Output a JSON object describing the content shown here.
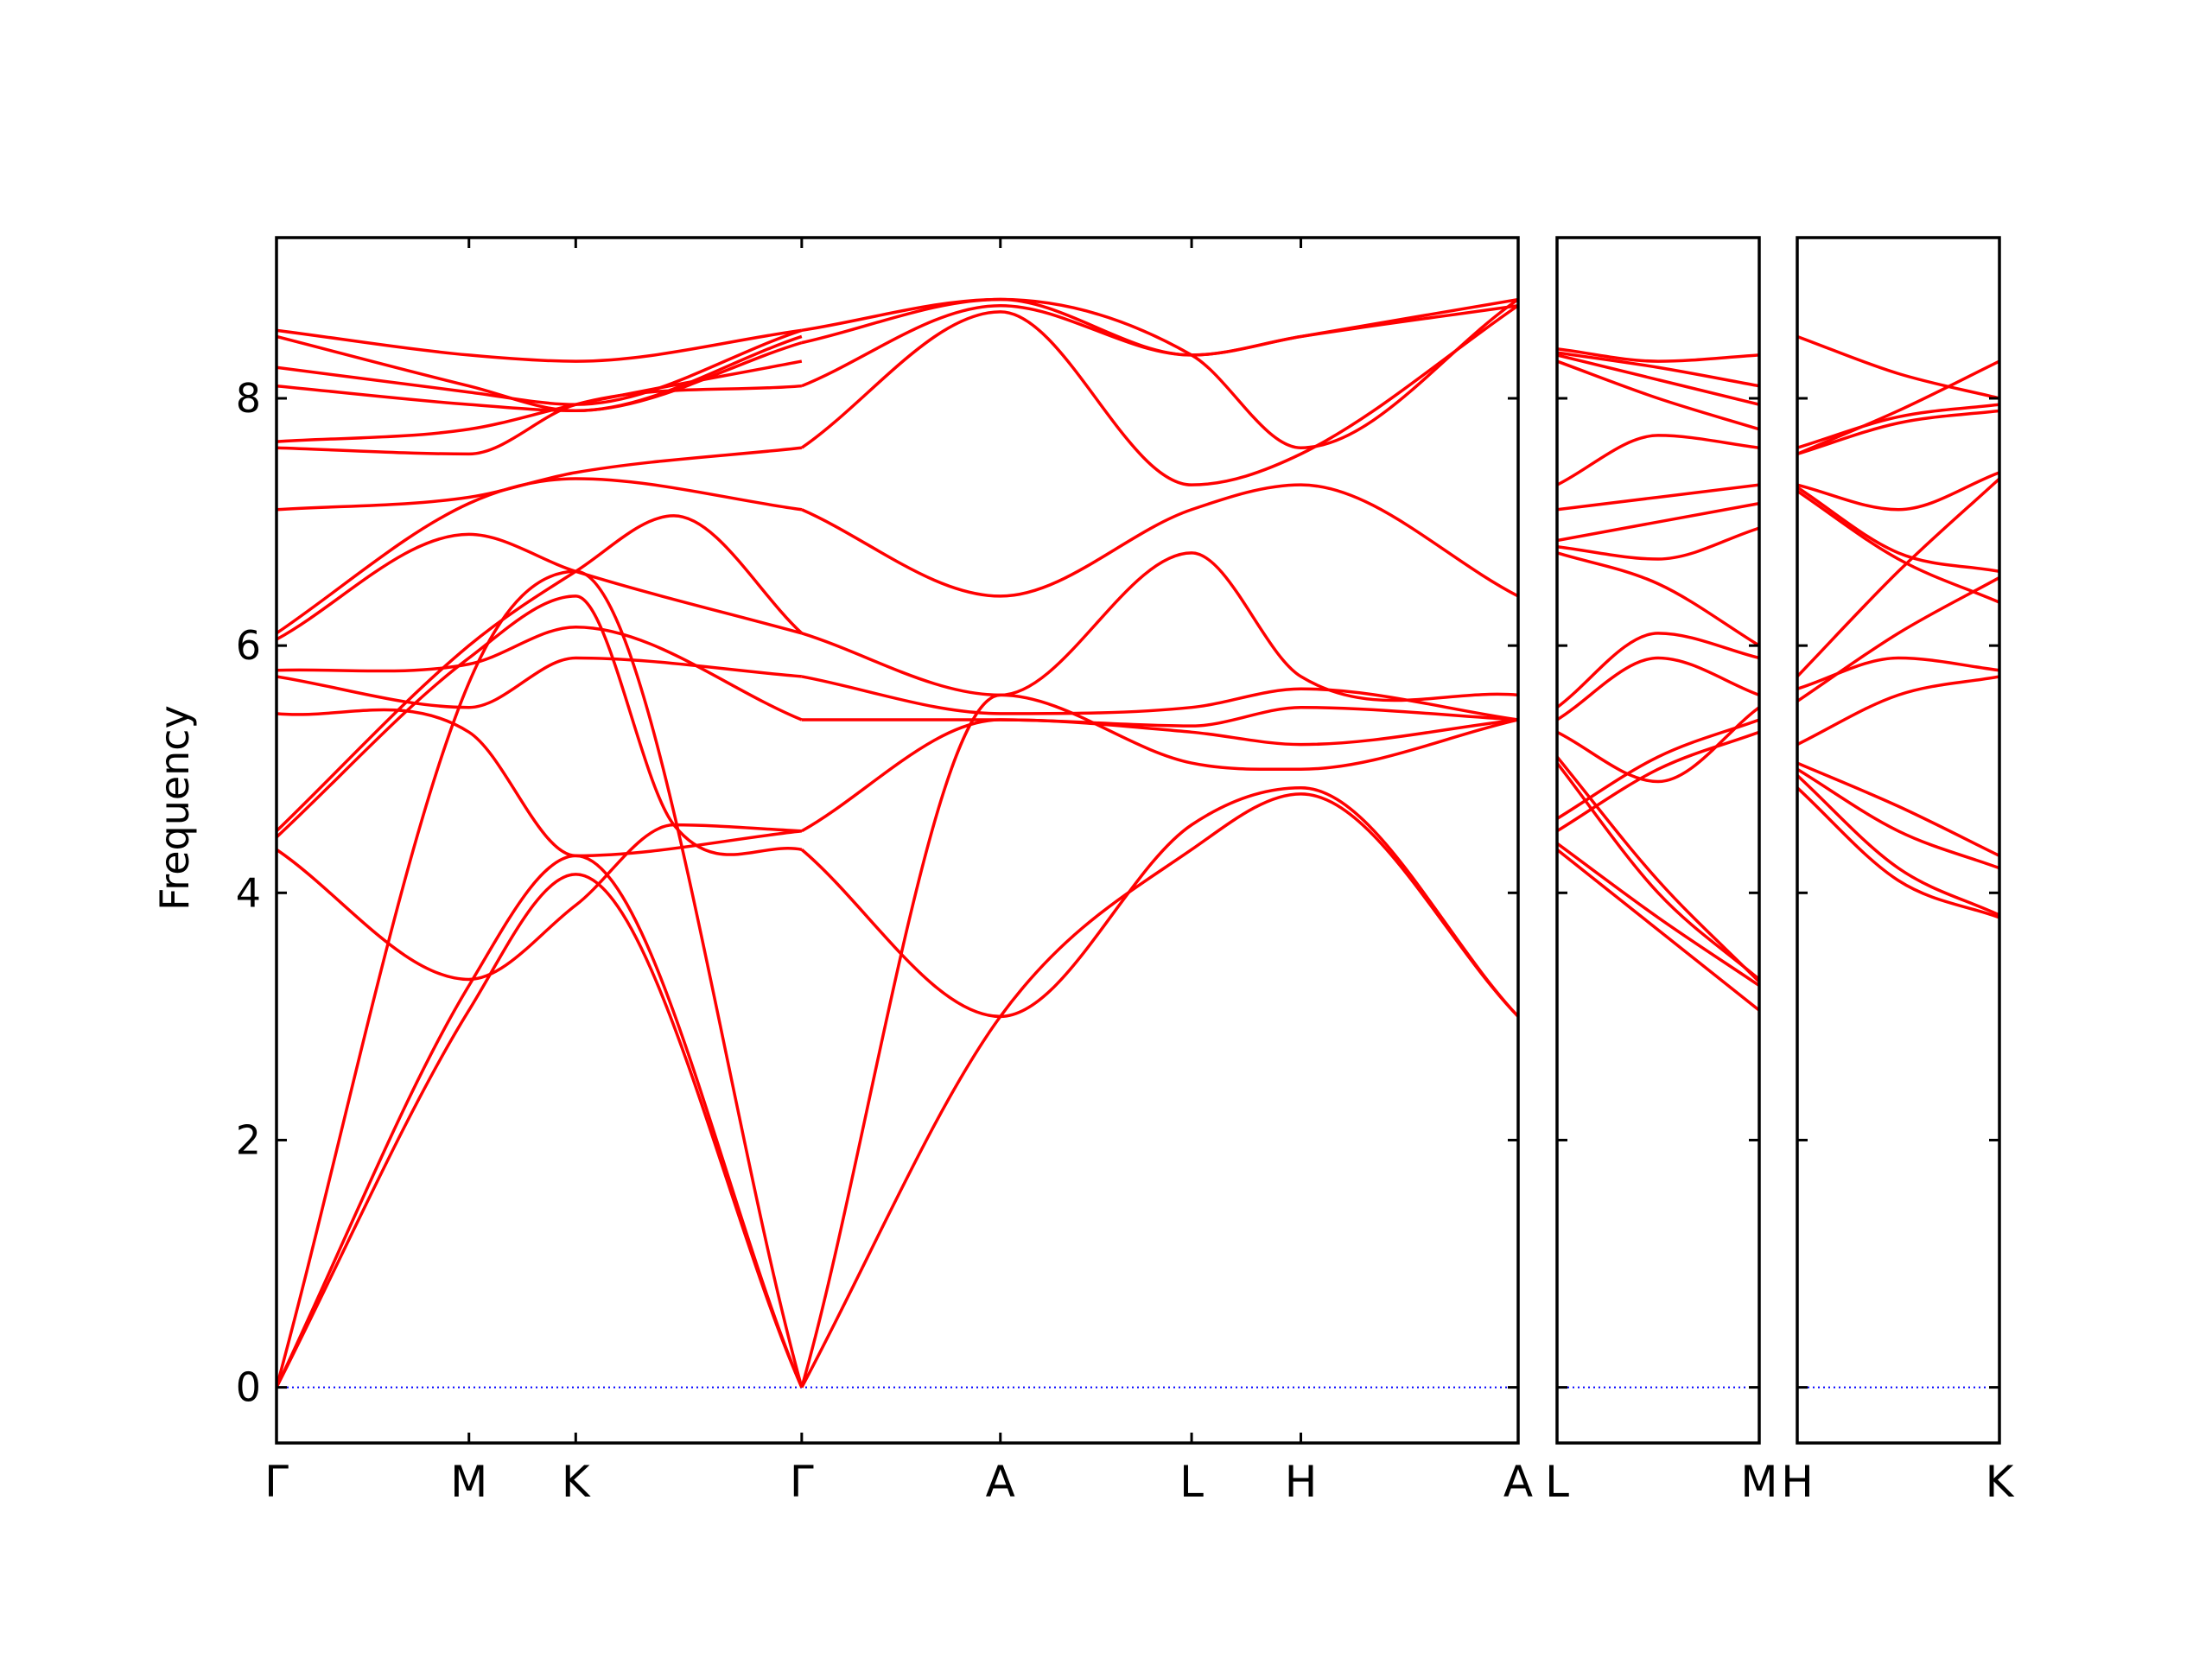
{
  "chart_data": {
    "type": "line",
    "title": "",
    "xlabel": "",
    "ylabel": "Frequency",
    "ylim": [
      -0.45,
      9.3
    ],
    "yticks": [
      0,
      2,
      4,
      6,
      8
    ],
    "grid": false,
    "legend": "none",
    "line_color": "#ff0000",
    "zero_line_color": "#0000ff",
    "panels": [
      {
        "id": "path-1",
        "xlim": [
          0,
          10
        ],
        "ticks": [
          {
            "x": 0,
            "label": "Γ"
          },
          {
            "x": 1.55,
            "label": "M"
          },
          {
            "x": 2.41,
            "label": "K"
          },
          {
            "x": 4.23,
            "label": "Γ"
          },
          {
            "x": 5.83,
            "label": "A"
          },
          {
            "x": 7.37,
            "label": "L"
          },
          {
            "x": 8.25,
            "label": "H"
          },
          {
            "x": 10,
            "label": "A"
          }
        ],
        "series": [
          {
            "x": [
              0,
              1.55,
              2.41,
              4.23
            ],
            "y": [
              0,
              3.05,
              4.15,
              0
            ]
          },
          {
            "x": [
              0,
              1.55,
              2.41,
              4.23
            ],
            "y": [
              0,
              3.25,
              4.3,
              0
            ]
          },
          {
            "x": [
              0,
              1.55,
              2.41,
              4.23
            ],
            "y": [
              0,
              5.7,
              6.6,
              0
            ]
          },
          {
            "x": [
              4.23,
              5.83,
              7.37,
              8.25,
              10
            ],
            "y": [
              0,
              3.0,
              4.35,
              4.8,
              3.0
            ]
          },
          {
            "x": [
              4.23,
              5.83,
              7.37,
              8.25,
              10
            ],
            "y": [
              0,
              5.6,
              5.05,
              5.0,
              5.4
            ]
          },
          {
            "x": [
              0,
              1.55,
              2.41,
              3.2,
              4.23
            ],
            "y": [
              4.35,
              3.3,
              3.9,
              4.55,
              4.5
            ]
          },
          {
            "x": [
              0,
              1.55,
              2.41,
              3.2,
              4.23
            ],
            "y": [
              4.45,
              5.9,
              6.4,
              4.55,
              4.35
            ]
          },
          {
            "x": [
              0,
              1.55,
              2.41,
              3.2,
              4.23
            ],
            "y": [
              4.5,
              6.0,
              6.6,
              7.05,
              6.1
            ]
          },
          {
            "x": [
              4.23,
              5.83,
              7.37,
              8.25,
              10
            ],
            "y": [
              4.35,
              3.0,
              4.55,
              4.85,
              3.0
            ]
          },
          {
            "x": [
              4.23,
              5.83,
              7.37,
              8.25,
              10
            ],
            "y": [
              4.5,
              5.4,
              5.3,
              5.2,
              5.4
            ]
          },
          {
            "x": [
              0,
              1.55,
              2.41,
              4.23
            ],
            "y": [
              5.45,
              5.3,
              4.3,
              4.5
            ]
          },
          {
            "x": [
              0,
              1.55,
              2.41,
              4.23
            ],
            "y": [
              5.75,
              5.5,
              5.9,
              5.75
            ]
          },
          {
            "x": [
              0,
              1.55,
              2.41,
              4.23
            ],
            "y": [
              5.8,
              5.85,
              6.15,
              5.4
            ]
          },
          {
            "x": [
              4.23,
              5.83,
              7.37,
              8.25,
              10
            ],
            "y": [
              5.4,
              5.4,
              5.35,
              5.5,
              5.4
            ]
          },
          {
            "x": [
              4.23,
              5.83,
              7.37,
              8.25,
              10
            ],
            "y": [
              5.75,
              5.45,
              5.5,
              5.65,
              5.4
            ]
          },
          {
            "x": [
              0,
              1.55,
              2.41,
              4.23
            ],
            "y": [
              6.05,
              6.9,
              6.6,
              6.1
            ]
          },
          {
            "x": [
              0,
              1.55,
              2.41,
              4.23
            ],
            "y": [
              6.1,
              7.15,
              7.35,
              7.1
            ]
          },
          {
            "x": [
              4.23,
              5.83,
              7.37,
              8.25,
              10
            ],
            "y": [
              6.1,
              5.6,
              6.75,
              5.75,
              5.6
            ]
          },
          {
            "x": [
              4.23,
              5.83,
              7.37,
              8.25,
              10
            ],
            "y": [
              7.1,
              6.4,
              7.1,
              7.3,
              6.4
            ]
          },
          {
            "x": [
              0,
              1.55,
              2.41,
              4.23
            ],
            "y": [
              7.1,
              7.2,
              7.4,
              7.6
            ]
          },
          {
            "x": [
              0,
              1.55,
              2.41,
              4.23
            ],
            "y": [
              7.6,
              7.55,
              7.95,
              8.1
            ]
          },
          {
            "x": [
              0,
              1.55,
              2.41,
              4.23
            ],
            "y": [
              7.65,
              7.75,
              7.95,
              8.3
            ]
          },
          {
            "x": [
              4.23,
              5.83,
              7.37,
              8.25,
              10
            ],
            "y": [
              7.6,
              8.7,
              7.3,
              7.55,
              8.75
            ]
          },
          {
            "x": [
              4.23,
              5.83,
              7.37,
              8.25,
              10
            ],
            "y": [
              8.1,
              8.75,
              8.35,
              8.5,
              8.75
            ]
          },
          {
            "x": [
              0,
              1.55,
              2.41,
              4.23
            ],
            "y": [
              8.1,
              7.95,
              7.9,
              8.45
            ]
          },
          {
            "x": [
              0,
              1.55,
              2.41,
              4.23
            ],
            "y": [
              8.25,
              8.05,
              7.95,
              8.55
            ]
          },
          {
            "x": [
              0,
              1.55,
              2.41,
              4.23
            ],
            "y": [
              8.5,
              8.1,
              7.9,
              8.5
            ]
          },
          {
            "x": [
              4.23,
              5.83,
              7.37,
              8.25,
              10
            ],
            "y": [
              8.45,
              8.8,
              8.35,
              7.6,
              8.8
            ]
          },
          {
            "x": [
              4.23,
              5.83,
              7.37,
              8.25,
              10
            ],
            "y": [
              8.55,
              8.8,
              8.35,
              8.5,
              8.8
            ]
          },
          {
            "x": [
              0,
              1.55,
              2.41,
              4.23
            ],
            "y": [
              8.55,
              8.35,
              8.3,
              8.55
            ]
          }
        ]
      },
      {
        "id": "path-2",
        "xlim": [
          0,
          1
        ],
        "ticks": [
          {
            "x": 0,
            "label": "L"
          },
          {
            "x": 1,
            "label": "M"
          }
        ],
        "series": [
          {
            "x": [
              0,
              0.5,
              1
            ],
            "y": [
              4.35,
              3.7,
              3.05
            ]
          },
          {
            "x": [
              0,
              0.5,
              1
            ],
            "y": [
              4.4,
              3.8,
              3.25
            ]
          },
          {
            "x": [
              0,
              0.5,
              1
            ],
            "y": [
              5.05,
              4.0,
              3.3
            ]
          },
          {
            "x": [
              0,
              0.5,
              1
            ],
            "y": [
              5.1,
              4.1,
              3.28
            ]
          },
          {
            "x": [
              0,
              0.5,
              1
            ],
            "y": [
              4.5,
              5.0,
              5.3
            ]
          },
          {
            "x": [
              0,
              0.5,
              1
            ],
            "y": [
              4.6,
              5.1,
              5.4
            ]
          },
          {
            "x": [
              0,
              0.5,
              1
            ],
            "y": [
              5.3,
              4.9,
              5.5
            ]
          },
          {
            "x": [
              0,
              0.5,
              1
            ],
            "y": [
              5.4,
              5.9,
              5.6
            ]
          },
          {
            "x": [
              0,
              0.5,
              1
            ],
            "y": [
              5.5,
              6.1,
              5.9
            ]
          },
          {
            "x": [
              0,
              0.5,
              1
            ],
            "y": [
              6.75,
              6.5,
              6.0
            ]
          },
          {
            "x": [
              0,
              0.5,
              1
            ],
            "y": [
              6.8,
              6.7,
              6.95
            ]
          },
          {
            "x": [
              0,
              0.5,
              1
            ],
            "y": [
              6.85,
              7.0,
              7.15
            ]
          },
          {
            "x": [
              0,
              0.5,
              1
            ],
            "y": [
              7.1,
              7.2,
              7.3
            ]
          },
          {
            "x": [
              0,
              0.5,
              1
            ],
            "y": [
              7.3,
              7.7,
              7.6
            ]
          },
          {
            "x": [
              0,
              0.5,
              1
            ],
            "y": [
              8.3,
              8.0,
              7.75
            ]
          },
          {
            "x": [
              0,
              0.5,
              1
            ],
            "y": [
              8.35,
              8.15,
              7.95
            ]
          },
          {
            "x": [
              0,
              0.5,
              1
            ],
            "y": [
              8.37,
              8.25,
              8.1
            ]
          },
          {
            "x": [
              0,
              0.5,
              1
            ],
            "y": [
              8.4,
              8.3,
              8.35
            ]
          }
        ]
      },
      {
        "id": "path-3",
        "xlim": [
          0,
          1
        ],
        "ticks": [
          {
            "x": 0,
            "label": "H"
          },
          {
            "x": 1,
            "label": "K"
          }
        ],
        "series": [
          {
            "x": [
              0,
              0.5,
              1
            ],
            "y": [
              4.85,
              4.1,
              3.8
            ]
          },
          {
            "x": [
              0,
              0.5,
              1
            ],
            "y": [
              4.95,
              4.2,
              3.82
            ]
          },
          {
            "x": [
              0,
              0.5,
              1
            ],
            "y": [
              5.0,
              4.5,
              4.2
            ]
          },
          {
            "x": [
              0,
              0.5,
              1
            ],
            "y": [
              5.05,
              4.7,
              4.3
            ]
          },
          {
            "x": [
              0,
              0.5,
              1
            ],
            "y": [
              5.2,
              5.6,
              5.75
            ]
          },
          {
            "x": [
              0,
              0.5,
              1
            ],
            "y": [
              5.55,
              6.1,
              6.55
            ]
          },
          {
            "x": [
              0,
              0.5,
              1
            ],
            "y": [
              5.65,
              5.9,
              5.8
            ]
          },
          {
            "x": [
              0,
              0.5,
              1
            ],
            "y": [
              5.75,
              6.6,
              7.35
            ]
          },
          {
            "x": [
              0,
              0.5,
              1
            ],
            "y": [
              7.25,
              6.7,
              6.35
            ]
          },
          {
            "x": [
              0,
              0.5,
              1
            ],
            "y": [
              7.28,
              6.75,
              6.6
            ]
          },
          {
            "x": [
              0,
              0.5,
              1
            ],
            "y": [
              7.3,
              7.1,
              7.4
            ]
          },
          {
            "x": [
              0,
              0.5,
              1
            ],
            "y": [
              7.55,
              7.8,
              7.9
            ]
          },
          {
            "x": [
              0,
              0.5,
              1
            ],
            "y": [
              7.6,
              7.85,
              7.95
            ]
          },
          {
            "x": [
              0,
              0.5,
              1
            ],
            "y": [
              8.5,
              8.2,
              8.0
            ]
          },
          {
            "x": [
              0,
              0.5,
              1
            ],
            "y": [
              7.55,
              7.9,
              8.3
            ]
          }
        ]
      }
    ]
  }
}
